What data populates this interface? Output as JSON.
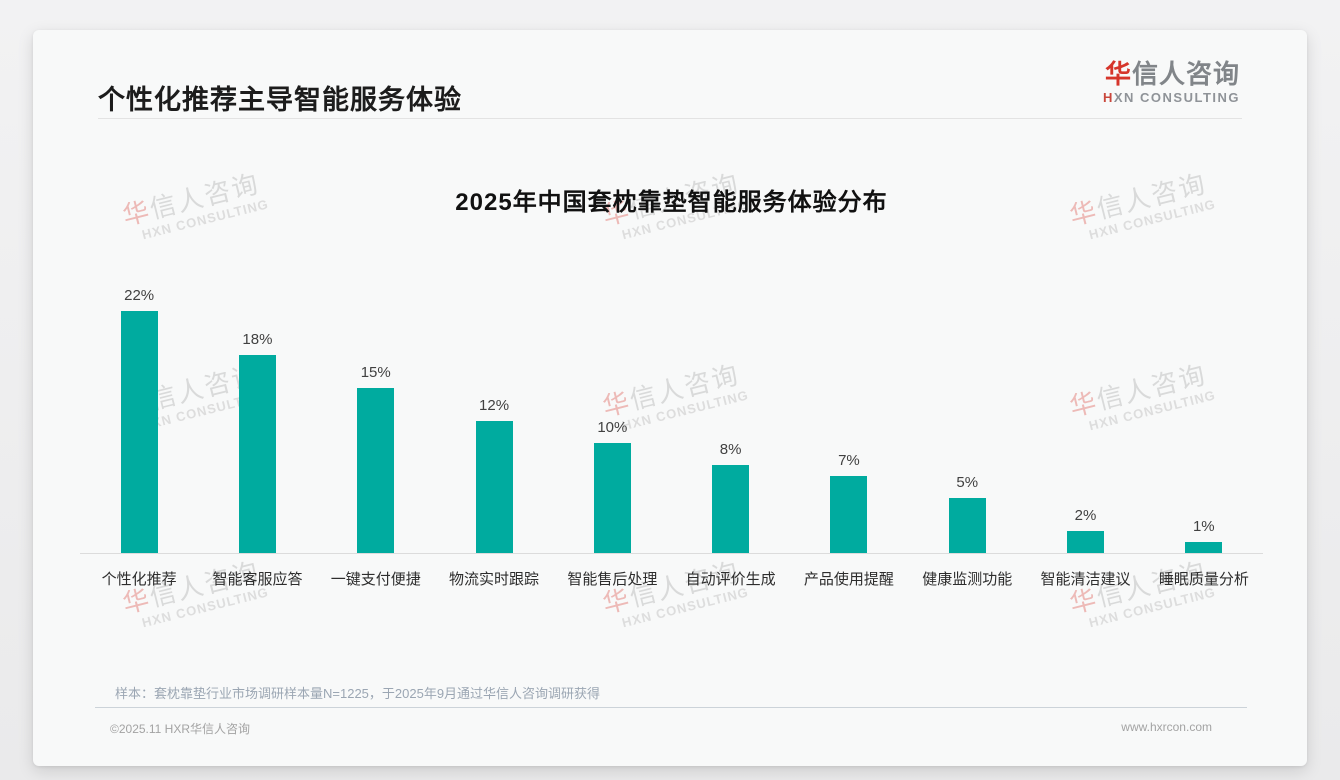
{
  "header": {
    "title": "个性化推荐主导智能服务体验"
  },
  "brand": {
    "logo_cn_accent": "华",
    "logo_cn_rest": "信人咨询",
    "logo_en_accent": "H",
    "logo_en_rest": "XN CONSULTING",
    "accent_color": "#d6352b"
  },
  "watermark": {
    "cn_accent": "华",
    "cn_rest": "信人咨询",
    "en": "HXN CONSULTING"
  },
  "chart_data": {
    "type": "bar",
    "title": "2025年中国套枕靠垫智能服务体验分布",
    "categories": [
      "个性化推荐",
      "智能客服应答",
      "一键支付便捷",
      "物流实时跟踪",
      "智能售后处理",
      "自动评价生成",
      "产品使用提醒",
      "健康监测功能",
      "智能清洁建议",
      "睡眠质量分析"
    ],
    "values": [
      22,
      18,
      15,
      12,
      10,
      8,
      7,
      5,
      2,
      1
    ],
    "unit": "%",
    "bar_color": "#00ab9f",
    "xlabel": "",
    "ylabel": "",
    "ylim": [
      0,
      24
    ],
    "grid": false,
    "legend": false,
    "value_labels": true
  },
  "footer": {
    "sample_note": "样本：套枕靠垫行业市场调研样本量N=1225，于2025年9月通过华信人咨询调研获得",
    "copyright": "©2025.11 HXR华信人咨询",
    "website": "www.hxrcon.com"
  }
}
